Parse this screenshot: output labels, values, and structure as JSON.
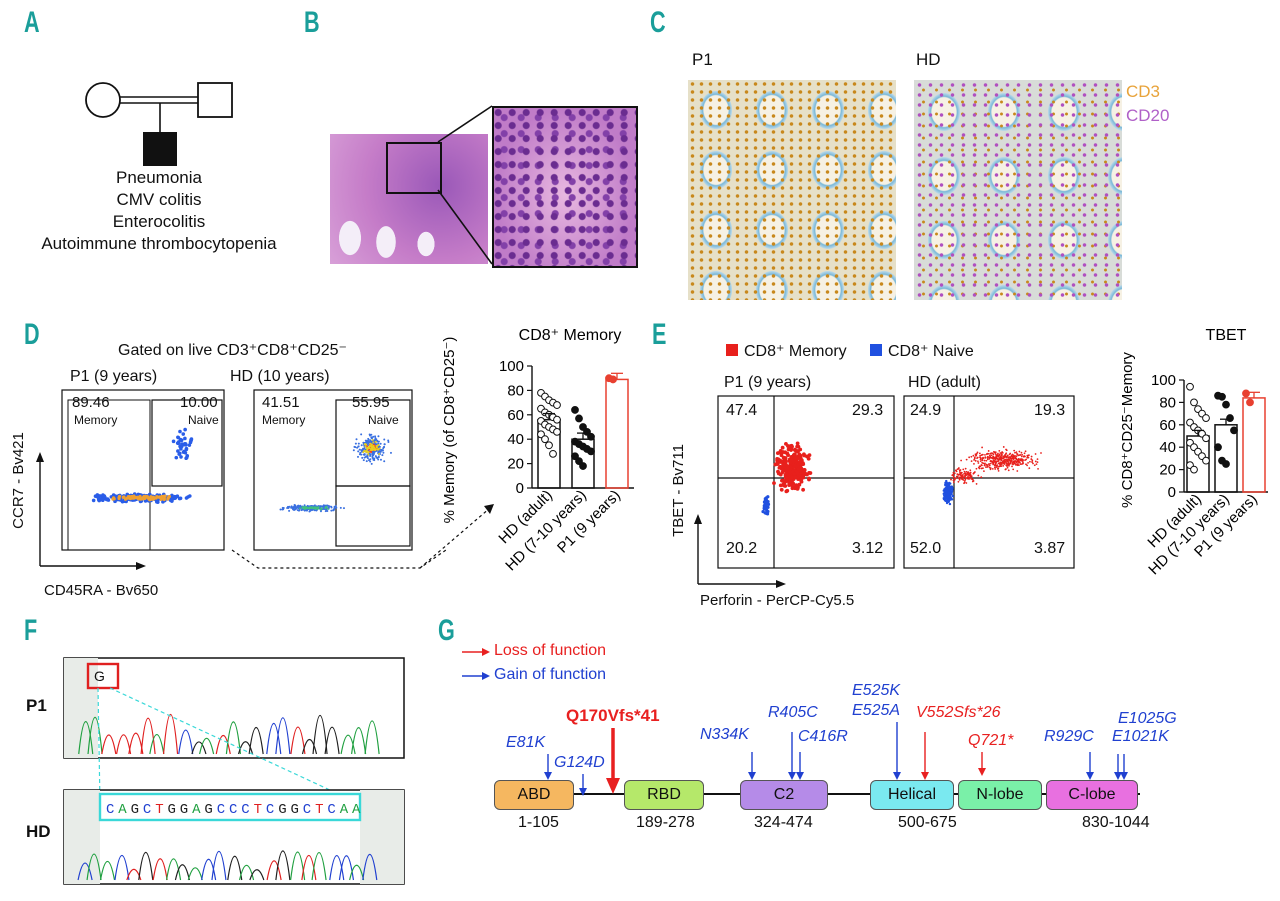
{
  "panels": {
    "a": "A",
    "b": "B",
    "c": "C",
    "d": "D",
    "e": "E",
    "f": "F",
    "g": "G"
  },
  "panel_a": {
    "phenotypes": [
      "Pneumonia",
      "CMV colitis",
      "Enterocolitis",
      "Autoimmune thrombocytopenia"
    ]
  },
  "panel_c": {
    "label_p1": "P1",
    "label_hd": "HD",
    "stain_cd3": "CD3",
    "stain_cd20": "CD20",
    "color_cd3": "#e8a33a",
    "color_cd20": "#b060c8"
  },
  "panel_d": {
    "gated_title": "Gated on live CD3⁺CD8⁺CD25⁻",
    "p1_title": "P1 (9 years)",
    "hd_title": "HD (10 years)",
    "p1_memory_pct": "89.46",
    "p1_naive_pct": "10.00",
    "hd_memory_pct": "41.51",
    "hd_naive_pct": "55.95",
    "memory_label": "Memory",
    "naive_label": "Naive",
    "y_axis": "CCR7 - Bv421",
    "x_axis": "CD45RA - Bv650"
  },
  "panel_e": {
    "legend_memory": "CD8⁺ Memory",
    "legend_naive": "CD8⁺ Naive",
    "color_memory": "#e8201c",
    "color_naive": "#2050e0",
    "p1_title": "P1 (9 years)",
    "hd_title": "HD (adult)",
    "p1_q": [
      "47.4",
      "29.3",
      "20.2",
      "3.12"
    ],
    "hd_q": [
      "24.9",
      "19.3",
      "52.0",
      "3.87"
    ],
    "y_axis": "TBET - Bv711",
    "x_axis": "Perforin - PerCP-Cy5.5"
  },
  "panel_f": {
    "label_p1": "P1",
    "label_hd": "HD",
    "highlight_base": "G",
    "hd_sequence": [
      "C",
      "A",
      "G",
      "C",
      "T",
      "G",
      "G",
      "A",
      "G",
      "C",
      "C",
      "C",
      "T",
      "C",
      "G",
      "G",
      "C",
      "T",
      "C",
      "A",
      "A"
    ]
  },
  "panel_g": {
    "legend_loss": "Loss of function",
    "legend_gain": "Gain of function",
    "color_loss": "#e82020",
    "color_gain": "#2040d0",
    "domains": [
      {
        "name": "ABD",
        "range": "1-105",
        "color": "#f5b760"
      },
      {
        "name": "RBD",
        "range": "189-278",
        "color": "#b5e86a"
      },
      {
        "name": "C2",
        "range": "324-474",
        "color": "#b58be8"
      },
      {
        "name": "Helical",
        "range": "500-675",
        "color": "#7ae9f0"
      },
      {
        "name": "N-lobe",
        "range": "",
        "color": "#7af0a8"
      },
      {
        "name": "C-lobe",
        "range": "830-1044",
        "color": "#e870e0"
      }
    ],
    "mutations": {
      "m_q170": "Q170Vfs*41",
      "m_e81k": "E81K",
      "m_g124d": "G124D",
      "m_n334k": "N334K",
      "m_r405c": "R405C",
      "m_c416r": "C416R",
      "m_e525k": "E525K",
      "m_e525a": "E525A",
      "m_v552": "V552Sfs*26",
      "m_q721": "Q721*",
      "m_r929c": "R929C",
      "m_e1025g": "E1025G",
      "m_e1021k": "E1021K"
    }
  },
  "chart_data": [
    {
      "type": "bar",
      "title": "CD8⁺ Memory",
      "ylabel": "% Memory (of CD8⁺CD25⁻)",
      "categories": [
        "HD (adult)",
        "HD (7-10 years)",
        "P1 (9 years)"
      ],
      "values": [
        56,
        40,
        89
      ],
      "ylim": [
        0,
        100
      ],
      "yticks": [
        0,
        20,
        40,
        60,
        80,
        100
      ],
      "points": [
        [
          78,
          75,
          72,
          70,
          68,
          65,
          62,
          60,
          58,
          56,
          55,
          52,
          50,
          48,
          46,
          44,
          40,
          35,
          28
        ],
        [
          64,
          57,
          50,
          46,
          42,
          38,
          36,
          34,
          32,
          30,
          26,
          22,
          18
        ],
        [
          90,
          89
        ]
      ]
    },
    {
      "type": "bar",
      "title": "TBET",
      "ylabel": "% CD8⁺CD25⁻Memory",
      "categories": [
        "HD (adult)",
        "HD (7-10 years)",
        "P1 (9 years)"
      ],
      "values": [
        50,
        60,
        84
      ],
      "ylim": [
        0,
        100
      ],
      "yticks": [
        0,
        20,
        40,
        60,
        80,
        100
      ],
      "points": [
        [
          94,
          80,
          74,
          70,
          66,
          62,
          58,
          55,
          52,
          48,
          44,
          40,
          36,
          32,
          28,
          24,
          20
        ],
        [
          86,
          85,
          78,
          66,
          55,
          40,
          28,
          25
        ],
        [
          88,
          80
        ]
      ]
    }
  ]
}
